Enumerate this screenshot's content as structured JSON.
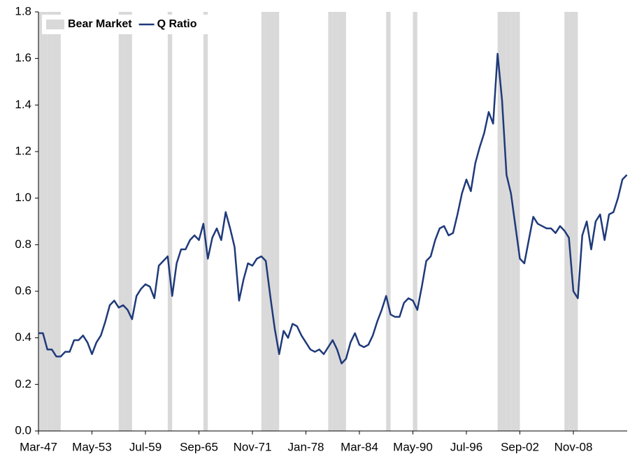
{
  "chart_data": {
    "type": "line",
    "categories": [
      "Mar-47",
      null,
      null,
      null,
      null,
      null,
      null,
      null,
      null,
      null,
      null,
      null,
      "May-53",
      null,
      null,
      null,
      null,
      null,
      null,
      null,
      null,
      null,
      null,
      null,
      "Jul-59",
      null,
      null,
      null,
      null,
      null,
      null,
      null,
      null,
      null,
      null,
      null,
      "Sep-65",
      null,
      null,
      null,
      null,
      null,
      null,
      null,
      null,
      null,
      null,
      null,
      "Nov-71",
      null,
      null,
      null,
      null,
      null,
      null,
      null,
      null,
      null,
      null,
      null,
      "Jan-78",
      null,
      null,
      null,
      null,
      null,
      null,
      null,
      null,
      null,
      null,
      null,
      "Mar-84",
      null,
      null,
      null,
      null,
      null,
      null,
      null,
      null,
      null,
      null,
      null,
      "May-90",
      null,
      null,
      null,
      null,
      null,
      null,
      null,
      null,
      null,
      null,
      null,
      "Jul-96",
      null,
      null,
      null,
      null,
      null,
      null,
      null,
      null,
      null,
      null,
      null,
      "Sep-02",
      null,
      null,
      null,
      null,
      null,
      null,
      null,
      null,
      null,
      null,
      null,
      "Nov-08",
      null,
      null,
      null,
      null,
      null,
      null,
      null,
      null,
      null,
      null,
      null,
      null
    ],
    "series": [
      {
        "name": "Bear Market",
        "type": "bar",
        "color": "#d9d9d9",
        "values": [
          1.8,
          1.8,
          1.8,
          1.8,
          1.8,
          0,
          0,
          0,
          0,
          0,
          0,
          0,
          0,
          0,
          0,
          0,
          0,
          0,
          1.8,
          1.8,
          1.8,
          0,
          0,
          0,
          0,
          0,
          0,
          0,
          0,
          1.8,
          0,
          0,
          0,
          0,
          0,
          0,
          0,
          1.8,
          0,
          0,
          0,
          0,
          0,
          0,
          0,
          0,
          0,
          0,
          0,
          0,
          1.8,
          1.8,
          1.8,
          1.8,
          0,
          0,
          0,
          0,
          0,
          0,
          0,
          0,
          0,
          0,
          0,
          1.8,
          1.8,
          1.8,
          1.8,
          0,
          0,
          0,
          0,
          0,
          0,
          0,
          0,
          0,
          1.8,
          0,
          0,
          0,
          0,
          0,
          1.8,
          0,
          0,
          0,
          0,
          0,
          0,
          0,
          0,
          0,
          0,
          0,
          0,
          0,
          0,
          0,
          0,
          0,
          0,
          1.8,
          1.8,
          1.8,
          1.8,
          1.8,
          0,
          0,
          0,
          0,
          0,
          0,
          0,
          0,
          0,
          0,
          1.8,
          1.8,
          1.8,
          0,
          0,
          0,
          0,
          0,
          0,
          0,
          0,
          0,
          0,
          0,
          0
        ]
      },
      {
        "name": "Q Ratio",
        "type": "line",
        "color": "#1f3a7a",
        "values": [
          0.42,
          0.42,
          0.35,
          0.35,
          0.32,
          0.32,
          0.34,
          0.34,
          0.39,
          0.39,
          0.41,
          0.38,
          0.33,
          0.38,
          0.41,
          0.47,
          0.54,
          0.56,
          0.53,
          0.54,
          0.52,
          0.48,
          0.58,
          0.61,
          0.63,
          0.62,
          0.57,
          0.71,
          0.73,
          0.75,
          0.58,
          0.72,
          0.78,
          0.78,
          0.82,
          0.84,
          0.82,
          0.89,
          0.74,
          0.83,
          0.87,
          0.82,
          0.94,
          0.87,
          0.79,
          0.56,
          0.65,
          0.72,
          0.71,
          0.74,
          0.75,
          0.73,
          0.58,
          0.44,
          0.33,
          0.43,
          0.4,
          0.46,
          0.45,
          0.41,
          0.38,
          0.35,
          0.34,
          0.35,
          0.33,
          0.36,
          0.39,
          0.35,
          0.29,
          0.31,
          0.38,
          0.42,
          0.37,
          0.36,
          0.37,
          0.41,
          0.47,
          0.52,
          0.58,
          0.5,
          0.49,
          0.49,
          0.55,
          0.57,
          0.56,
          0.52,
          0.62,
          0.73,
          0.75,
          0.82,
          0.87,
          0.88,
          0.84,
          0.85,
          0.93,
          1.02,
          1.08,
          1.03,
          1.15,
          1.22,
          1.28,
          1.37,
          1.32,
          1.62,
          1.42,
          1.1,
          1.02,
          0.88,
          0.74,
          0.72,
          0.82,
          0.92,
          0.89,
          0.88,
          0.87,
          0.87,
          0.85,
          0.88,
          0.86,
          0.83,
          0.6,
          0.57,
          0.84,
          0.9,
          0.78,
          0.9,
          0.93,
          0.82,
          0.93,
          0.94,
          1.0,
          1.08,
          1.1
        ]
      }
    ],
    "ylim": [
      0,
      1.8
    ],
    "yticks": [
      {
        "value": 0,
        "label": "0.0"
      },
      0.2,
      0.4,
      0.6,
      0.8,
      {
        "value": 1,
        "label": "1.0"
      },
      1.2,
      1.4,
      1.6,
      1.8
    ],
    "legend": "top-left"
  }
}
